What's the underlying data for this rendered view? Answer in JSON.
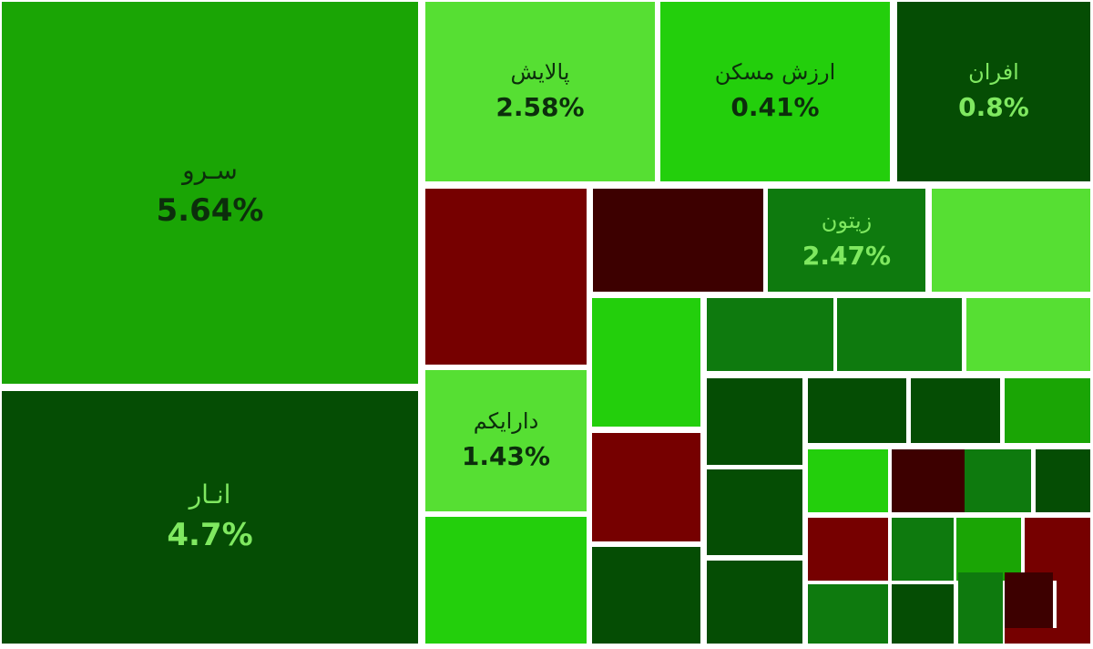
{
  "chart_data": {
    "type": "treemap",
    "colors": {
      "bright_green": "#56df33",
      "green": "#23cf0c",
      "mid_green": "#1aa505",
      "dark_green": "#0e7a0e",
      "darker_green": "#054d04",
      "red": "#760000",
      "dark_red": "#3d0000",
      "label_dark": "#0c2e0c",
      "label_light": "#7fe860"
    },
    "tiles": [
      {
        "name": "سـرو",
        "value": "5.64%",
        "color": "#1aa505"
      },
      {
        "name": "انـار",
        "value": "4.7%",
        "color": "#054d04"
      },
      {
        "name": "پالایش",
        "value": "2.58%",
        "color": "#56df33"
      },
      {
        "name": "ارزش مسکن",
        "value": "0.41%",
        "color": "#23cf0c"
      },
      {
        "name": "افران",
        "value": "0.8%",
        "color": "#054d04"
      },
      {
        "name": "",
        "value": "",
        "color": "#760000"
      },
      {
        "name": "",
        "value": "",
        "color": "#3d0000"
      },
      {
        "name": "زیتون",
        "value": "2.47%",
        "color": "#0e7a0e"
      },
      {
        "name": "",
        "value": "",
        "color": "#56df33"
      },
      {
        "name": "دارایکم",
        "value": "1.43%",
        "color": "#56df33"
      },
      {
        "name": "",
        "value": "",
        "color": "#23cf0c"
      },
      {
        "name": "",
        "value": "",
        "color": "#23cf0c"
      },
      {
        "name": "",
        "value": "",
        "color": "#0e7a0e"
      },
      {
        "name": "",
        "value": "",
        "color": "#0e7a0e"
      },
      {
        "name": "",
        "value": "",
        "color": "#56df33"
      },
      {
        "name": "",
        "value": "",
        "color": "#760000"
      },
      {
        "name": "",
        "value": "",
        "color": "#054d04"
      },
      {
        "name": "",
        "value": "",
        "color": "#054d04"
      },
      {
        "name": "",
        "value": "",
        "color": "#054d04"
      },
      {
        "name": "",
        "value": "",
        "color": "#054d04"
      },
      {
        "name": "",
        "value": "",
        "color": "#1aa505"
      },
      {
        "name": "",
        "value": "",
        "color": "#054d04"
      },
      {
        "name": "",
        "value": "",
        "color": "#23cf0c"
      },
      {
        "name": "",
        "value": "",
        "color": "#3d0000"
      },
      {
        "name": "",
        "value": "",
        "color": "#0e7a0e"
      },
      {
        "name": "",
        "value": "",
        "color": "#054d04"
      },
      {
        "name": "",
        "value": "",
        "color": "#054d04"
      },
      {
        "name": "",
        "value": "",
        "color": "#760000"
      },
      {
        "name": "",
        "value": "",
        "color": "#0e7a0e"
      },
      {
        "name": "",
        "value": "",
        "color": "#1aa505"
      },
      {
        "name": "",
        "value": "",
        "color": "#760000"
      },
      {
        "name": "",
        "value": "",
        "color": "#0e7a0e"
      },
      {
        "name": "",
        "value": "",
        "color": "#054d04"
      },
      {
        "name": "",
        "value": "",
        "color": "#0e7a0e"
      },
      {
        "name": "",
        "value": "",
        "color": "#3d0000"
      },
      {
        "name": "",
        "value": "",
        "color": "#760000"
      },
      {
        "name": "",
        "value": "",
        "color": "#760000"
      }
    ]
  }
}
